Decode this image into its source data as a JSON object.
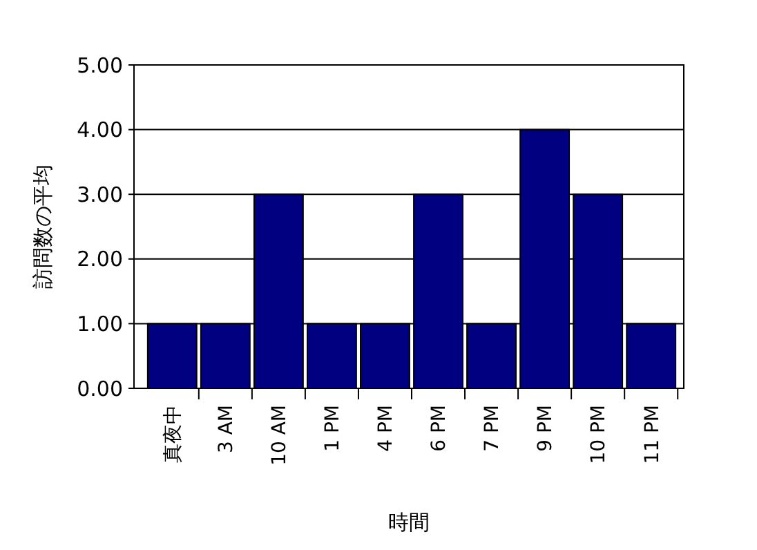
{
  "chart_data": {
    "type": "bar",
    "xlabel": "時間",
    "ylabel": "訪問数の平均",
    "categories": [
      "真夜中",
      "3 AM",
      "10 AM",
      "1 PM",
      "4 PM",
      "6 PM",
      "7 PM",
      "9 PM",
      "10 PM",
      "11 PM"
    ],
    "values": [
      1,
      1,
      3,
      1,
      1,
      3,
      1,
      4,
      3,
      1
    ],
    "color": "#000080",
    "ylim": [
      0,
      5
    ],
    "yticks": [
      {
        "value": 0,
        "label": "0.00"
      },
      {
        "value": 1,
        "label": "1.00"
      },
      {
        "value": 2,
        "label": "2.00"
      },
      {
        "value": 3,
        "label": "3.00"
      },
      {
        "value": 4,
        "label": "4.00"
      },
      {
        "value": 5,
        "label": "5.00"
      }
    ],
    "grid": "y"
  }
}
